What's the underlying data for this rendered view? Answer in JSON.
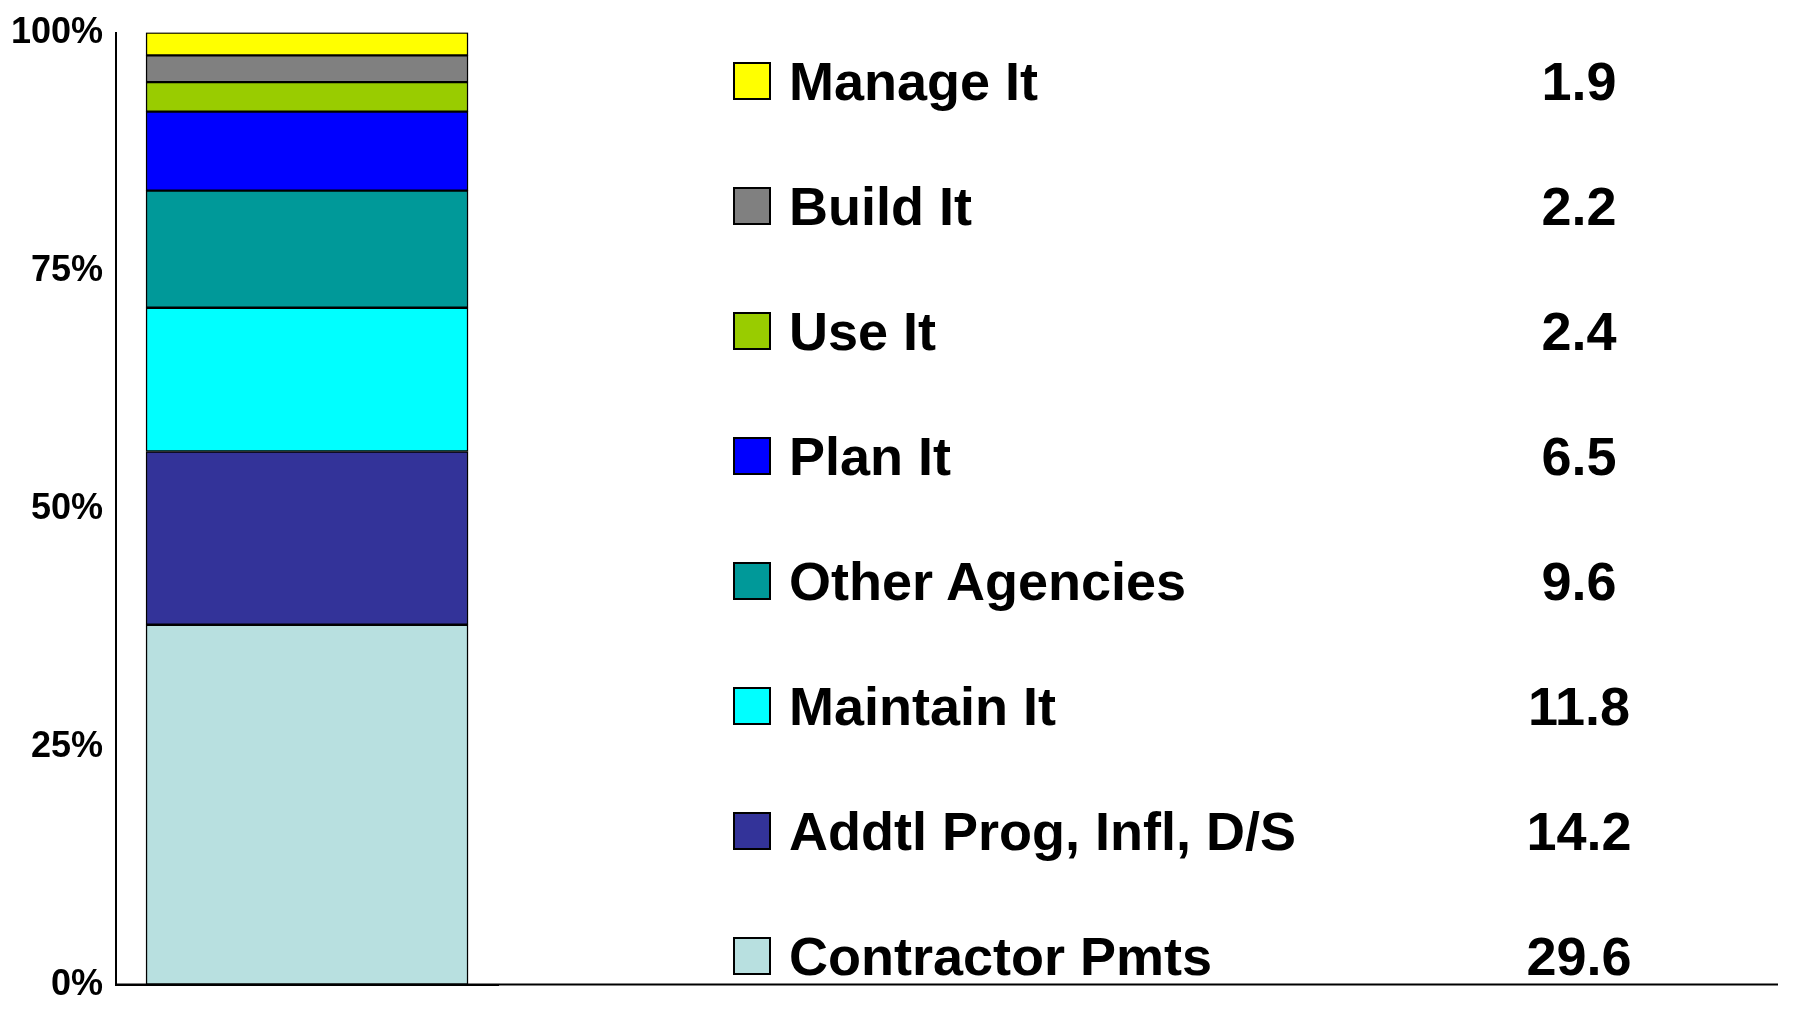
{
  "chart_data": {
    "type": "bar",
    "stacked": true,
    "categories": [
      null
    ],
    "ylim": [
      0,
      100
    ],
    "yticks": [
      {
        "value": 0,
        "label": "0%"
      },
      {
        "value": 25,
        "label": "25%"
      },
      {
        "value": 50,
        "label": "50%"
      },
      {
        "value": 75,
        "label": "75%"
      },
      {
        "value": 100,
        "label": "100%"
      }
    ],
    "grid": false,
    "legend": "right",
    "annotations": [
      "1.9",
      "2.2",
      "2.4",
      "6.5",
      "9.6",
      "11.8",
      "14.2",
      "29.6"
    ],
    "series": [
      {
        "name": "Contractor Pmts",
        "color": "#b8e0e0",
        "values": [
          37.8
        ]
      },
      {
        "name": "Addtl Prog, Infl, D/S",
        "color": "#333399",
        "values": [
          18.2
        ]
      },
      {
        "name": "Maintain It",
        "color": "#00ffff",
        "values": [
          15.1
        ]
      },
      {
        "name": "Other Agencies",
        "color": "#009999",
        "values": [
          12.3
        ]
      },
      {
        "name": "Plan It",
        "color": "#0000ff",
        "values": [
          8.3
        ]
      },
      {
        "name": "Use It",
        "color": "#99cc00",
        "values": [
          3.1
        ]
      },
      {
        "name": "Build It",
        "color": "#808080",
        "values": [
          2.8
        ]
      },
      {
        "name": "Manage It",
        "color": "#ffff00",
        "values": [
          2.4
        ]
      }
    ]
  }
}
